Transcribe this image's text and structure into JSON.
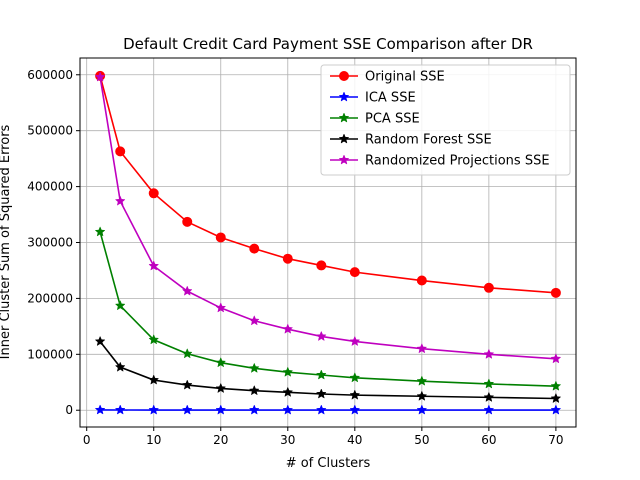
{
  "chart_data": {
    "type": "line",
    "title": "Default Credit Card Payment SSE Comparison after DR",
    "xlabel": "# of Clusters",
    "ylabel": "Inner Cluster Sum of Squared Errors",
    "x": [
      2,
      5,
      10,
      15,
      20,
      25,
      30,
      35,
      40,
      50,
      60,
      70
    ],
    "xlim": [
      -1,
      73
    ],
    "ylim": [
      -30000,
      630000
    ],
    "xticks": [
      0,
      10,
      20,
      30,
      40,
      50,
      60,
      70
    ],
    "yticks": [
      0,
      100000,
      200000,
      300000,
      400000,
      500000,
      600000
    ],
    "grid": true,
    "legend_position": "top-right",
    "series": [
      {
        "name": "Original SSE",
        "color": "#ff0000",
        "marker": "circle",
        "values": [
          598000,
          463000,
          388000,
          337000,
          309000,
          289000,
          271000,
          259000,
          247000,
          232000,
          219000,
          210000
        ]
      },
      {
        "name": "ICA SSE",
        "color": "#0000ff",
        "marker": "star",
        "values": [
          500,
          400,
          300,
          300,
          300,
          300,
          300,
          300,
          300,
          300,
          300,
          300
        ]
      },
      {
        "name": "PCA SSE",
        "color": "#008000",
        "marker": "star",
        "values": [
          319000,
          187000,
          126000,
          101000,
          85000,
          75000,
          68000,
          63000,
          58000,
          52000,
          47000,
          43000
        ]
      },
      {
        "name": "Random Forest SSE",
        "color": "#000000",
        "marker": "star",
        "values": [
          123000,
          77000,
          54000,
          45000,
          39000,
          35000,
          32000,
          29000,
          27000,
          25000,
          23000,
          21000
        ]
      },
      {
        "name": "Randomized Projections SSE",
        "color": "#bf00bf",
        "marker": "star",
        "values": [
          596000,
          374000,
          258000,
          213000,
          183000,
          160000,
          145000,
          132000,
          123000,
          110000,
          100000,
          92000
        ]
      }
    ]
  }
}
